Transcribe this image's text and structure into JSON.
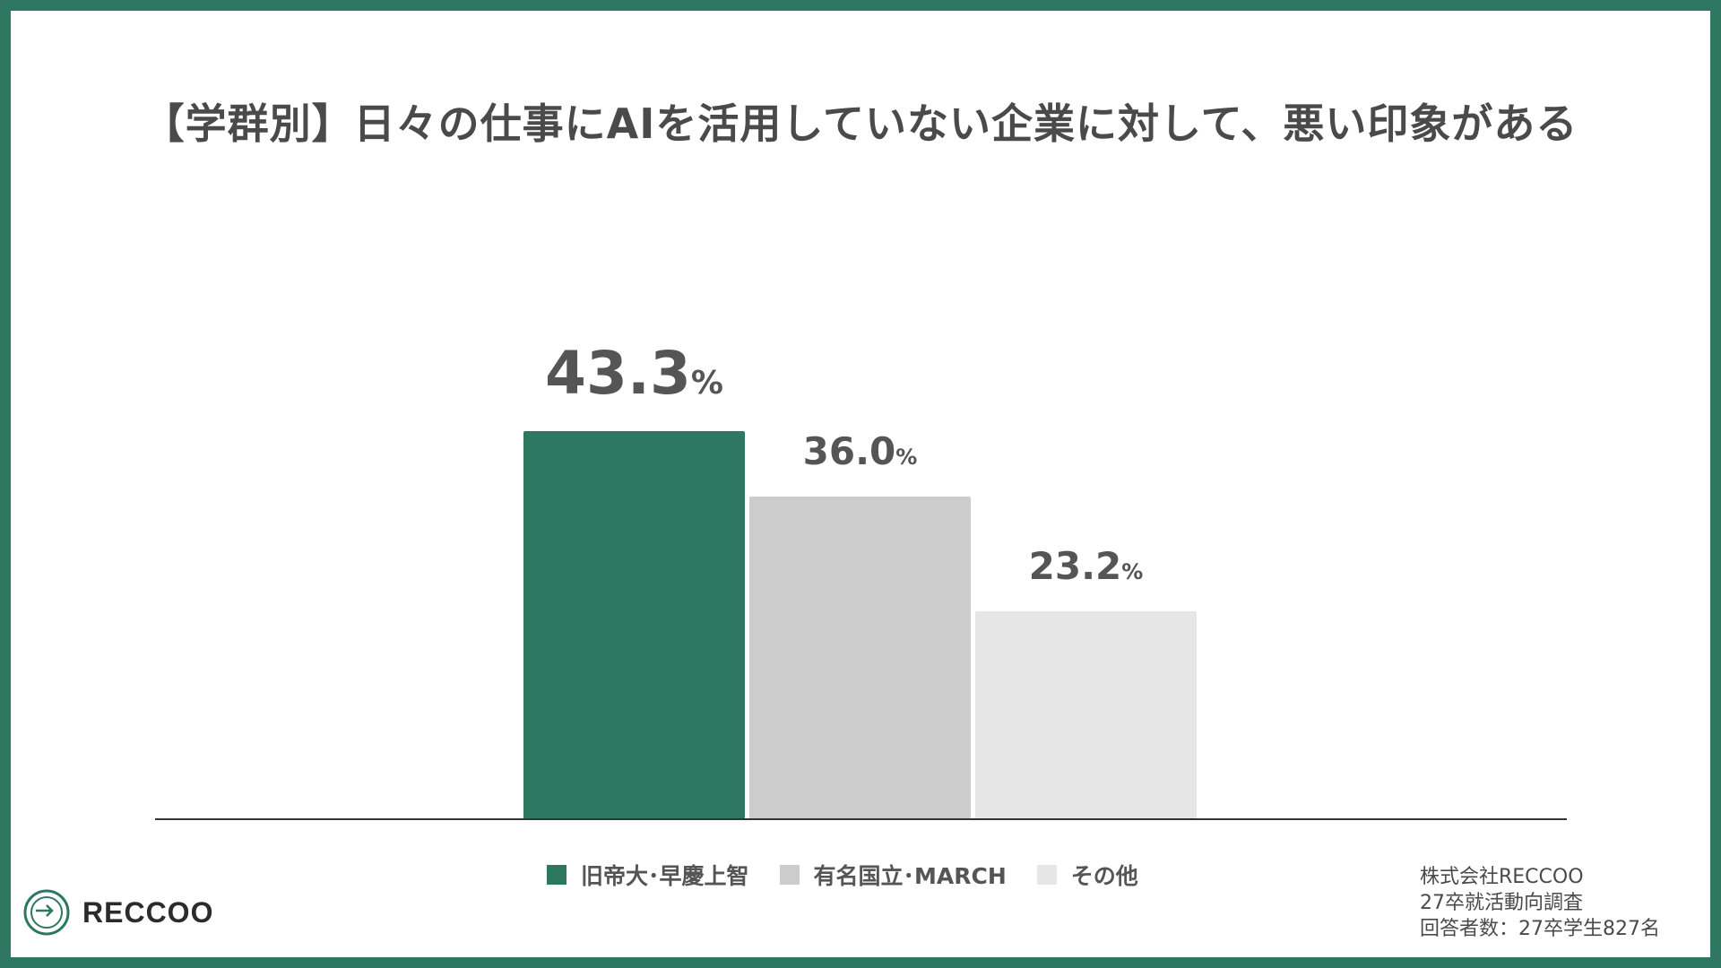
{
  "chart_data": {
    "type": "bar",
    "title": "【学群別】日々の仕事にAIを活用していない企業に対して、悪い印象がある",
    "categories": [
      "旧帝大･早慶上智",
      "有名国立･MARCH",
      "その他"
    ],
    "values": [
      43.3,
      36.0,
      23.2
    ],
    "value_labels": [
      "43.3",
      "36.0",
      "23.2"
    ],
    "unit": "%",
    "colors": [
      "#2e7862",
      "#cccccc",
      "#e6e6e6"
    ],
    "ylim": [
      0,
      50
    ],
    "grid": false,
    "legend_position": "bottom",
    "xlabel": "",
    "ylabel": ""
  },
  "legend": {
    "items": [
      {
        "label": "旧帝大･早慶上智",
        "color": "#2e7862"
      },
      {
        "label": "有名国立･MARCH",
        "color": "#cccccc"
      },
      {
        "label": "その他",
        "color": "#e6e6e6"
      }
    ]
  },
  "footer": {
    "company": "株式会社RECCOO",
    "survey": "27卒就活動向調査",
    "respondents": "回答者数：27卒学生827名"
  },
  "logo": {
    "text": "RECCOO",
    "icon": "reccoo-logo-icon",
    "color": "#2e7862"
  }
}
